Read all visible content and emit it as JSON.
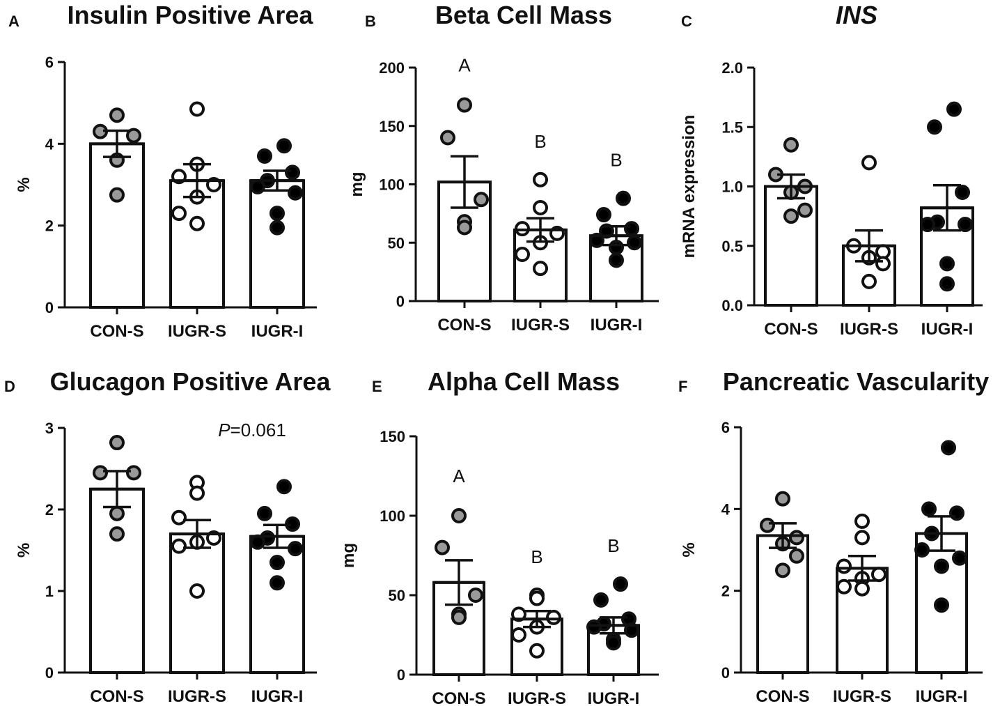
{
  "chart_data": [
    {
      "panel": "A",
      "type": "bar",
      "title": "Insulin Positive Area",
      "title_italic": false,
      "ylabel": "%",
      "categories": [
        "CON-S",
        "IUGR-S",
        "IUGR-I"
      ],
      "ylim": [
        0,
        6
      ],
      "yticks": [
        0,
        2,
        4,
        6
      ],
      "ytick_labels": [
        "0",
        "2",
        "4",
        "6"
      ],
      "values": [
        4.0,
        3.1,
        3.1
      ],
      "sem": [
        0.32,
        0.4,
        0.24
      ],
      "points": [
        [
          4.7,
          4.3,
          4.2,
          3.6,
          2.75
        ],
        [
          4.85,
          3.5,
          3.2,
          3.0,
          2.7,
          2.3,
          2.05
        ],
        [
          3.95,
          3.7,
          3.3,
          3.1,
          2.95,
          2.8,
          2.3,
          1.95
        ]
      ],
      "point_fill": [
        "#999999",
        "#ffffff",
        "#000000"
      ],
      "annotations": []
    },
    {
      "panel": "B",
      "type": "bar",
      "title": "Beta Cell Mass",
      "title_italic": false,
      "ylabel": "mg",
      "categories": [
        "CON-S",
        "IUGR-S",
        "IUGR-I"
      ],
      "ylim": [
        0,
        200
      ],
      "yticks": [
        0,
        50,
        100,
        150,
        200
      ],
      "ytick_labels": [
        "0",
        "50",
        "100",
        "150",
        "200"
      ],
      "values": [
        102,
        61,
        56
      ],
      "sem": [
        22,
        10,
        8
      ],
      "points": [
        [
          168,
          140,
          87,
          68,
          63
        ],
        [
          104,
          80,
          62,
          58,
          50,
          40,
          28
        ],
        [
          88,
          74,
          62,
          60,
          52,
          50,
          46,
          35
        ]
      ],
      "point_fill": [
        "#999999",
        "#ffffff",
        "#000000"
      ],
      "annotations": [
        "A",
        "B",
        "B"
      ]
    },
    {
      "panel": "C",
      "type": "bar",
      "title": "INS",
      "title_italic": true,
      "ylabel": "mRNA expression",
      "categories": [
        "CON-S",
        "IUGR-S",
        "IUGR-I"
      ],
      "ylim": [
        0,
        2.0
      ],
      "yticks": [
        0,
        0.5,
        1.0,
        1.5,
        2.0
      ],
      "ytick_labels": [
        "0.0",
        "0.5",
        "1.0",
        "1.5",
        "2.0"
      ],
      "values": [
        1.0,
        0.5,
        0.82
      ],
      "sem": [
        0.1,
        0.13,
        0.19
      ],
      "points": [
        [
          1.35,
          1.1,
          1.0,
          0.95,
          0.8,
          0.75
        ],
        [
          1.2,
          0.5,
          0.45,
          0.4,
          0.35,
          0.2
        ],
        [
          1.65,
          1.5,
          0.95,
          0.7,
          0.68,
          0.68,
          0.35,
          0.18
        ]
      ],
      "point_fill": [
        "#999999",
        "#ffffff",
        "#000000"
      ],
      "annotations": []
    },
    {
      "panel": "D",
      "type": "bar",
      "title": "Glucagon Positive Area",
      "title_italic": false,
      "ylabel": "%",
      "categories": [
        "CON-S",
        "IUGR-S",
        "IUGR-I"
      ],
      "ylim": [
        0,
        3
      ],
      "yticks": [
        0,
        1,
        2,
        3
      ],
      "ytick_labels": [
        "0",
        "1",
        "2",
        "3"
      ],
      "values": [
        2.25,
        1.7,
        1.67
      ],
      "sem": [
        0.22,
        0.17,
        0.14
      ],
      "points": [
        [
          2.82,
          2.45,
          2.45,
          1.95,
          1.7
        ],
        [
          2.33,
          2.2,
          1.9,
          1.65,
          1.6,
          1.55,
          1.0
        ],
        [
          2.28,
          1.95,
          1.82,
          1.65,
          1.6,
          1.52,
          1.35,
          1.1
        ]
      ],
      "point_fill": [
        "#999999",
        "#ffffff",
        "#000000"
      ],
      "annotations": [],
      "p_value_prefix": "P",
      "p_value_text": "=0.061"
    },
    {
      "panel": "E",
      "type": "bar",
      "title": "Alpha Cell Mass",
      "title_italic": false,
      "ylabel": "mg",
      "categories": [
        "CON-S",
        "IUGR-S",
        "IUGR-I"
      ],
      "ylim": [
        0,
        150
      ],
      "yticks": [
        0,
        50,
        100,
        150
      ],
      "ytick_labels": [
        "0",
        "50",
        "100",
        "150"
      ],
      "values": [
        58,
        35,
        31
      ],
      "sem": [
        14,
        5,
        5
      ],
      "points": [
        [
          100,
          80,
          50,
          38,
          36
        ],
        [
          50,
          48,
          38,
          36,
          30,
          25,
          15
        ],
        [
          57,
          47,
          35,
          32,
          30,
          28,
          22,
          20
        ]
      ],
      "point_fill": [
        "#999999",
        "#ffffff",
        "#000000"
      ],
      "annotations": [
        "A",
        "B",
        "B"
      ]
    },
    {
      "panel": "F",
      "type": "bar",
      "title": "Pancreatic Vascularity",
      "title_italic": false,
      "ylabel": "%",
      "categories": [
        "CON-S",
        "IUGR-S",
        "IUGR-I"
      ],
      "ylim": [
        0,
        6
      ],
      "yticks": [
        0,
        2,
        4,
        6
      ],
      "ytick_labels": [
        "0",
        "2",
        "4",
        "6"
      ],
      "values": [
        3.35,
        2.55,
        3.4
      ],
      "sem": [
        0.3,
        0.3,
        0.42
      ],
      "points": [
        [
          4.25,
          3.6,
          3.3,
          3.15,
          2.85,
          2.5
        ],
        [
          3.7,
          3.3,
          2.6,
          2.4,
          2.3,
          2.1,
          2.05
        ],
        [
          5.5,
          4.0,
          3.9,
          3.4,
          3.0,
          2.8,
          2.6,
          1.65
        ]
      ],
      "point_fill": [
        "#999999",
        "#ffffff",
        "#000000"
      ],
      "annotations": []
    }
  ]
}
